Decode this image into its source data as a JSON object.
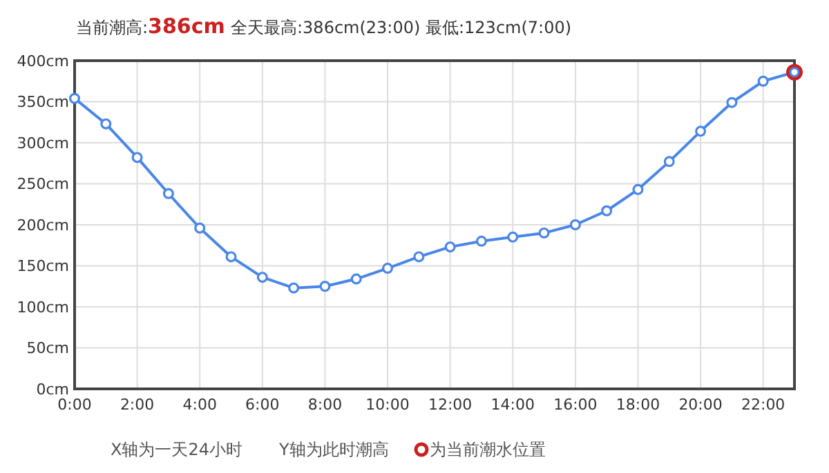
{
  "chart_data": {
    "type": "line",
    "title": "当前潮高:386cm",
    "subtitle": "全天最高:386cm(23:00) 最低:123cm(7:00)",
    "x": [
      0,
      1,
      2,
      3,
      4,
      5,
      6,
      7,
      8,
      9,
      10,
      11,
      12,
      13,
      14,
      15,
      16,
      17,
      18,
      19,
      20,
      21,
      22,
      23
    ],
    "series": [
      {
        "color": "#4a86e8",
        "values": [
          354,
          323,
          282,
          238,
          196,
          161,
          136,
          123,
          125,
          134,
          147,
          161,
          173,
          180,
          185,
          190,
          200,
          217,
          243,
          277,
          314,
          349,
          375,
          386
        ]
      },
      {
        "type": "scatter",
        "name": "为当前潮水位置",
        "color": "#cc1f1f",
        "x": [
          23
        ],
        "values": [
          386
        ]
      }
    ],
    "xlim": [
      0,
      23
    ],
    "xticks": [
      {
        "value": 0,
        "label": "0:00"
      },
      {
        "value": 2,
        "label": "2:00"
      },
      {
        "value": 4,
        "label": "4:00"
      },
      {
        "value": 6,
        "label": "6:00"
      },
      {
        "value": 8,
        "label": "8:00"
      },
      {
        "value": 10,
        "label": "10:00"
      },
      {
        "value": 12,
        "label": "12:00"
      },
      {
        "value": 14,
        "label": "14:00"
      },
      {
        "value": 16,
        "label": "16:00"
      },
      {
        "value": 18,
        "label": "18:00"
      },
      {
        "value": 20,
        "label": "20:00"
      },
      {
        "value": 22,
        "label": "22:00"
      }
    ],
    "ylim": [
      0,
      400
    ],
    "yticks": [
      {
        "value": 0,
        "label": "0cm"
      },
      {
        "value": 50,
        "label": "50cm"
      },
      {
        "value": 100,
        "label": "100cm"
      },
      {
        "value": 150,
        "label": "150cm"
      },
      {
        "value": 200,
        "label": "200cm"
      },
      {
        "value": 250,
        "label": "250cm"
      },
      {
        "value": 300,
        "label": "300cm"
      },
      {
        "value": 350,
        "label": "350cm"
      },
      {
        "value": 400,
        "label": "400cm"
      }
    ],
    "grid": true,
    "legend": "bottom",
    "marker": "circle",
    "line_style": "solid",
    "annotations": [
      "X轴为一天24小时",
      "Y轴为此时潮高"
    ]
  }
}
